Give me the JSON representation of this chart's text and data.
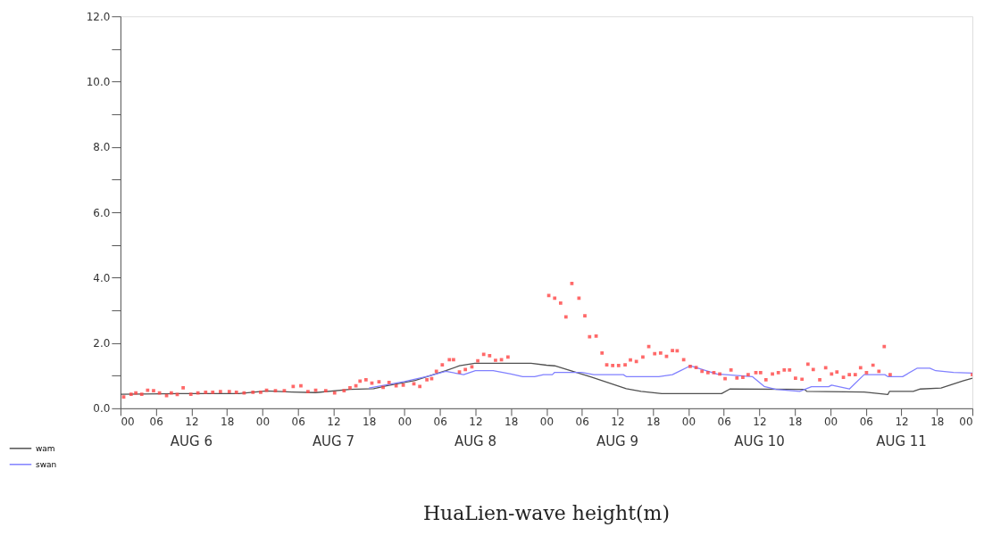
{
  "chart_data": {
    "type": "line",
    "title": "HuaLien-wave height(m)",
    "xlim": [
      0,
      144
    ],
    "ylim": [
      0,
      12
    ],
    "xticks": [
      {
        "value": 0,
        "label": "00"
      },
      {
        "value": 6,
        "label": "06"
      },
      {
        "value": 12,
        "label": "12"
      },
      {
        "value": 18,
        "label": "18"
      },
      {
        "value": 24,
        "label": "00"
      },
      {
        "value": 30,
        "label": "06"
      },
      {
        "value": 36,
        "label": "12"
      },
      {
        "value": 42,
        "label": "18"
      },
      {
        "value": 48,
        "label": "00"
      },
      {
        "value": 54,
        "label": "06"
      },
      {
        "value": 60,
        "label": "12"
      },
      {
        "value": 66,
        "label": "18"
      },
      {
        "value": 72,
        "label": "00"
      },
      {
        "value": 78,
        "label": "06"
      },
      {
        "value": 84,
        "label": "12"
      },
      {
        "value": 90,
        "label": "18"
      },
      {
        "value": 96,
        "label": "00"
      },
      {
        "value": 102,
        "label": "06"
      },
      {
        "value": 108,
        "label": "12"
      },
      {
        "value": 114,
        "label": "18"
      },
      {
        "value": 120,
        "label": "00"
      },
      {
        "value": 126,
        "label": "06"
      },
      {
        "value": 132,
        "label": "12"
      },
      {
        "value": 138,
        "label": "18"
      },
      {
        "value": 144,
        "label": "00"
      }
    ],
    "yticks": [
      {
        "value": 0,
        "label": "0.0"
      },
      {
        "value": 1,
        "label": null
      },
      {
        "value": 2,
        "label": "2.0"
      },
      {
        "value": 3,
        "label": null
      },
      {
        "value": 4,
        "label": "4.0"
      },
      {
        "value": 5,
        "label": null
      },
      {
        "value": 6,
        "label": "6.0"
      },
      {
        "value": 7,
        "label": null
      },
      {
        "value": 8,
        "label": "8.0"
      },
      {
        "value": 9,
        "label": null
      },
      {
        "value": 10,
        "label": "10.0"
      },
      {
        "value": 11,
        "label": null
      },
      {
        "value": 12,
        "label": "12.0"
      }
    ],
    "annotations": [
      "AUG  6",
      "AUG  7",
      "AUG  8",
      "AUG  9",
      "AUG 10",
      "AUG 11"
    ],
    "grid": false,
    "legend": "bottom left",
    "series": [
      {
        "name": "wam",
        "color": "#505050",
        "x": [
          0,
          10,
          20,
          24.7,
          29,
          33,
          38.8,
          42.8,
          44.8,
          49.8,
          55,
          57.3,
          59.9,
          69.4,
          72,
          73.4,
          79.5,
          85.5,
          88,
          91.5,
          101.6,
          103,
          115.6,
          116,
          125.7,
          129.7,
          130,
          134,
          135.2,
          138.7,
          142.4,
          144
        ],
        "values": [
          0.43,
          0.45,
          0.45,
          0.53,
          0.5,
          0.48,
          0.58,
          0.6,
          0.68,
          0.85,
          1.15,
          1.3,
          1.38,
          1.38,
          1.32,
          1.3,
          0.96,
          0.6,
          0.52,
          0.45,
          0.45,
          0.59,
          0.58,
          0.52,
          0.5,
          0.42,
          0.52,
          0.52,
          0.59,
          0.62,
          0.84,
          0.92
        ]
      },
      {
        "name": "swan",
        "color": "#8080ff",
        "x": [
          42,
          48,
          52,
          55,
          58,
          60,
          63,
          66,
          68,
          70,
          71.5,
          73,
          73.4,
          78,
          80,
          85,
          85.5,
          91,
          93.3,
          96.3,
          100.8,
          106.8,
          108.8,
          110.8,
          114.8,
          116.8,
          119.7,
          120.2,
          123.2,
          125.7,
          129.2,
          129.7,
          132.2,
          134.7,
          136.8,
          137.8,
          140.8,
          144
        ],
        "values": [
          0.62,
          0.82,
          0.98,
          1.13,
          1.03,
          1.15,
          1.15,
          1.05,
          0.97,
          0.97,
          1.03,
          1.03,
          1.1,
          1.1,
          1.03,
          1.03,
          0.97,
          0.97,
          1.03,
          1.3,
          1.05,
          0.97,
          0.67,
          0.58,
          0.52,
          0.66,
          0.66,
          0.71,
          0.59,
          1.03,
          1.03,
          0.97,
          0.97,
          1.23,
          1.23,
          1.15,
          1.1,
          1.08
        ]
      },
      {
        "color": "#ff4444",
        "type": "scatter",
        "marker": "square",
        "x": [
          0.55,
          1.8,
          2.6,
          3.6,
          4.6,
          5.6,
          6.6,
          7.8,
          8.6,
          9.6,
          10.6,
          11.9,
          13.1,
          14.4,
          15.6,
          16.9,
          18.4,
          19.6,
          20.9,
          22.4,
          23.7,
          24.7,
          26.2,
          27.7,
          29.2,
          30.5,
          31.7,
          33.0,
          34.7,
          36.2,
          37.8,
          38.8,
          39.8,
          40.5,
          41.5,
          42.5,
          43.7,
          44.4,
          45.4,
          46.6,
          47.8,
          49.6,
          50.6,
          51.8,
          52.6,
          53.4,
          54.4,
          55.6,
          56.3,
          57.3,
          58.3,
          59.4,
          60.4,
          61.4,
          62.4,
          63.4,
          64.4,
          65.5,
          72.4,
          73.4,
          74.4,
          75.3,
          76.3,
          77.5,
          78.5,
          79.3,
          80.4,
          81.4,
          82.2,
          83.2,
          84.2,
          85.3,
          86.2,
          87.2,
          88.3,
          89.3,
          90.3,
          91.3,
          92.3,
          93.3,
          94.1,
          95.2,
          96.3,
          97.3,
          98.3,
          99.3,
          100.3,
          101.3,
          102.2,
          103.2,
          104.2,
          105.2,
          106.1,
          107.4,
          108.2,
          109.1,
          110.2,
          111.2,
          112.2,
          113.1,
          114.1,
          115.2,
          116.2,
          117.1,
          118.2,
          119.2,
          120.2,
          121.1,
          122.2,
          123.2,
          124.2,
          125.1,
          126.1,
          127.2,
          128.2,
          129.1,
          130.1,
          144.0
        ],
        "values": [
          0.35,
          0.43,
          0.47,
          0.43,
          0.55,
          0.54,
          0.47,
          0.39,
          0.47,
          0.42,
          0.63,
          0.43,
          0.47,
          0.49,
          0.49,
          0.51,
          0.51,
          0.49,
          0.47,
          0.49,
          0.49,
          0.55,
          0.54,
          0.54,
          0.67,
          0.69,
          0.51,
          0.55,
          0.54,
          0.47,
          0.54,
          0.63,
          0.69,
          0.83,
          0.87,
          0.77,
          0.81,
          0.64,
          0.79,
          0.69,
          0.71,
          0.75,
          0.67,
          0.87,
          0.91,
          1.13,
          1.33,
          1.49,
          1.49,
          1.11,
          1.19,
          1.27,
          1.45,
          1.65,
          1.61,
          1.47,
          1.49,
          1.57,
          3.45,
          3.37,
          3.22,
          2.8,
          3.82,
          3.37,
          2.83,
          2.19,
          2.21,
          1.69,
          1.33,
          1.31,
          1.31,
          1.33,
          1.48,
          1.43,
          1.57,
          1.89,
          1.67,
          1.69,
          1.59,
          1.77,
          1.76,
          1.49,
          1.28,
          1.25,
          1.13,
          1.09,
          1.09,
          1.05,
          0.91,
          1.17,
          0.93,
          0.95,
          1.03,
          1.09,
          1.09,
          0.87,
          1.05,
          1.09,
          1.17,
          1.17,
          0.92,
          0.89,
          1.35,
          1.19,
          0.87,
          1.24,
          1.05,
          1.11,
          0.95,
          1.03,
          1.03,
          1.24,
          1.09,
          1.32,
          1.13,
          1.89,
          1.03,
          1.03
        ]
      }
    ]
  }
}
